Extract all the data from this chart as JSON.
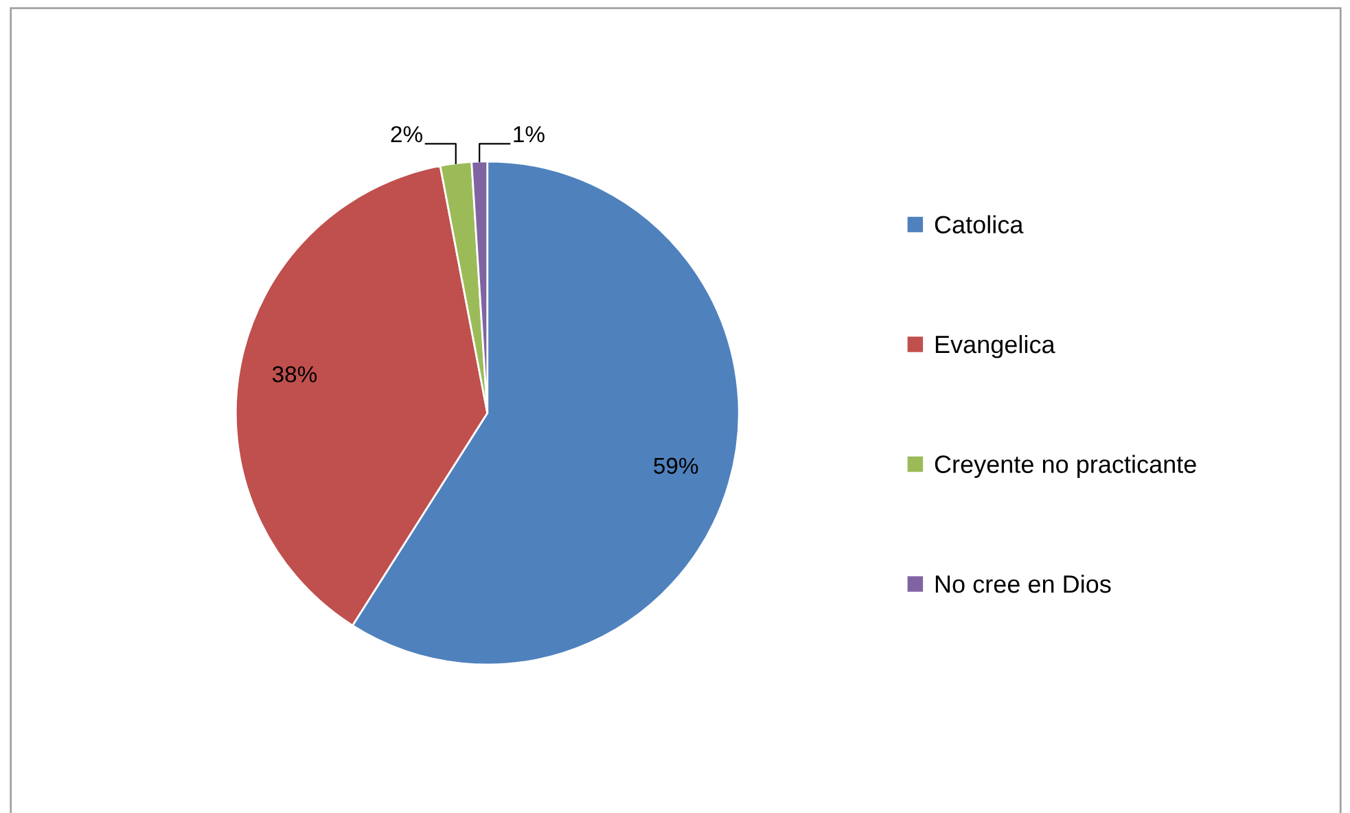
{
  "chart_data": {
    "type": "pie",
    "categories": [
      "Catolica",
      "Evangelica",
      "Creyente no practicante",
      "No cree en Dios"
    ],
    "values": [
      59,
      38,
      2,
      1
    ],
    "colors": [
      "#4f81bd",
      "#c0504d",
      "#9bbb59",
      "#8064a2"
    ],
    "value_labels": [
      "59%",
      "38%",
      "2%",
      "1%"
    ],
    "legend": "right"
  }
}
